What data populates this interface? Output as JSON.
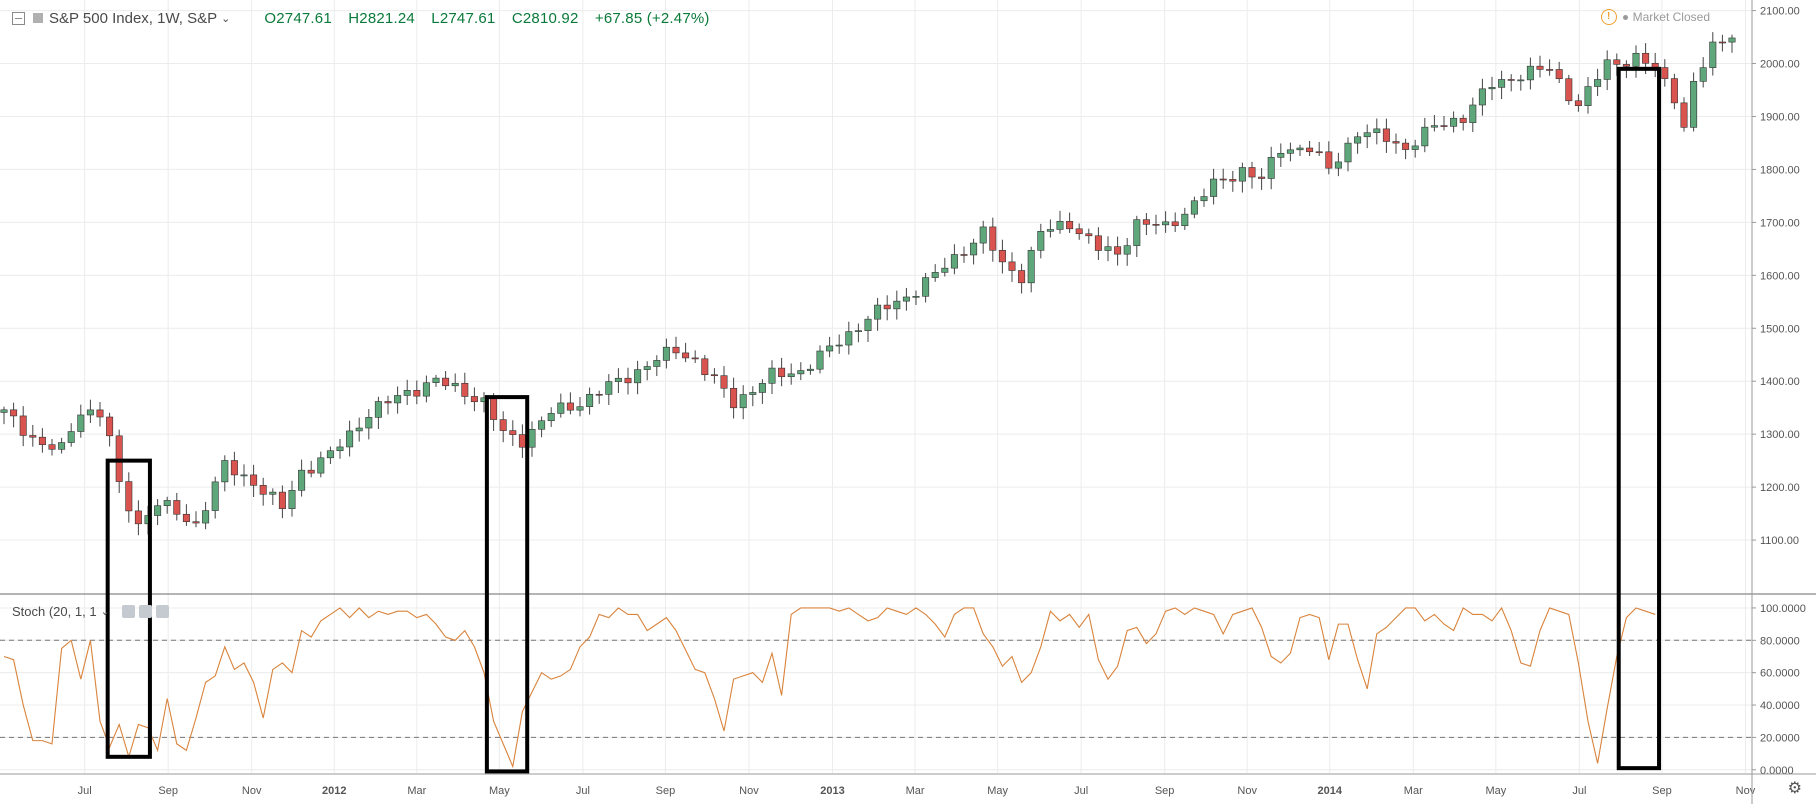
{
  "header": {
    "symbol": "S&P 500 Index, 1W, S&P",
    "open": "O2747.61",
    "high": "H2821.24",
    "low": "L2747.61",
    "close": "C2810.92",
    "change": "+67.85 (+2.47%)"
  },
  "status": {
    "market": "Market Closed"
  },
  "indicator": {
    "label": "Stoch (20, 1, 1"
  },
  "colors": {
    "up": "#5ea77a",
    "down": "#d9534f",
    "stoch_line": "#d9833b",
    "grid": "#ececec",
    "box": "#000000"
  },
  "chart_data": [
    {
      "type": "candlestick",
      "title": "S&P 500 Index, 1W, S&P",
      "ylim": [
        1000,
        2120
      ],
      "ytick_labels": [
        "1100.00",
        "1200.00",
        "1300.00",
        "1400.00",
        "1500.00",
        "1600.00",
        "1700.00",
        "1800.00",
        "1900.00",
        "2000.00",
        "2100.00"
      ],
      "xtick_labels": [
        "Jul",
        "Sep",
        "Nov",
        "2012",
        "Mar",
        "May",
        "Jul",
        "Sep",
        "Nov",
        "2013",
        "Mar",
        "May",
        "Jul",
        "Sep",
        "Nov",
        "2014",
        "Mar",
        "May",
        "Jul",
        "Sep",
        "Nov"
      ],
      "xtick_weeks": [
        8.4,
        17.1,
        25.8,
        34.4,
        43,
        51.6,
        60.3,
        68.9,
        77.6,
        86.3,
        94.9,
        103.5,
        112.2,
        120.9,
        129.5,
        138.1,
        146.8,
        155.4,
        164.1,
        172.7,
        181.4
      ],
      "close_keypoints": [
        [
          0,
          1340
        ],
        [
          4,
          1280
        ],
        [
          6,
          1270
        ],
        [
          8,
          1345
        ],
        [
          10,
          1340
        ],
        [
          11,
          1290
        ],
        [
          12,
          1200
        ],
        [
          14,
          1130
        ],
        [
          16,
          1170
        ],
        [
          18,
          1150
        ],
        [
          20,
          1130
        ],
        [
          23,
          1240
        ],
        [
          26,
          1210
        ],
        [
          29,
          1160
        ],
        [
          31,
          1230
        ],
        [
          34,
          1260
        ],
        [
          38,
          1340
        ],
        [
          42,
          1380
        ],
        [
          45,
          1400
        ],
        [
          48,
          1380
        ],
        [
          50,
          1360
        ],
        [
          52,
          1300
        ],
        [
          54,
          1290
        ],
        [
          57,
          1340
        ],
        [
          60,
          1360
        ],
        [
          64,
          1400
        ],
        [
          68,
          1440
        ],
        [
          70,
          1460
        ],
        [
          72,
          1440
        ],
        [
          76,
          1360
        ],
        [
          80,
          1410
        ],
        [
          83,
          1420
        ],
        [
          86,
          1460
        ],
        [
          90,
          1520
        ],
        [
          94,
          1560
        ],
        [
          97,
          1600
        ],
        [
          100,
          1650
        ],
        [
          102,
          1680
        ],
        [
          104,
          1620
        ],
        [
          106,
          1600
        ],
        [
          108,
          1680
        ],
        [
          111,
          1700
        ],
        [
          114,
          1650
        ],
        [
          116,
          1640
        ],
        [
          118,
          1700
        ],
        [
          121,
          1690
        ],
        [
          123,
          1720
        ],
        [
          126,
          1770
        ],
        [
          129,
          1800
        ],
        [
          131,
          1780
        ],
        [
          133,
          1840
        ],
        [
          136,
          1840
        ],
        [
          138,
          1800
        ],
        [
          141,
          1870
        ],
        [
          144,
          1860
        ],
        [
          146,
          1840
        ],
        [
          149,
          1880
        ],
        [
          152,
          1900
        ],
        [
          155,
          1960
        ],
        [
          158,
          1980
        ],
        [
          161,
          1990
        ],
        [
          164,
          1920
        ],
        [
          167,
          2000
        ],
        [
          170,
          2010
        ],
        [
          172,
          1990
        ],
        [
          174,
          1940
        ],
        [
          175,
          1880
        ],
        [
          176,
          1960
        ],
        [
          178,
          2030
        ],
        [
          180,
          2060
        ]
      ],
      "annotations": [
        {
          "shape": "rectangle",
          "week_start": 10.8,
          "week_end": 15.2,
          "price_top": 1250,
          "indicator_bottom": 8
        },
        {
          "shape": "rectangle",
          "week_start": 50.3,
          "week_end": 54.5,
          "price_top": 1370,
          "indicator_bottom": -1
        },
        {
          "shape": "rectangle",
          "week_start": 168.2,
          "week_end": 172.4,
          "price_top": 1990,
          "indicator_bottom": 1
        }
      ]
    },
    {
      "type": "line",
      "title": "Stoch (20, 1, 1",
      "ylim": [
        -2,
        108
      ],
      "ytick_labels": [
        "0.0000",
        "20.0000",
        "40.0000",
        "60.0000",
        "80.0000",
        "100.0000"
      ],
      "levels": [
        20,
        80
      ],
      "series": [
        {
          "values": [
            70,
            68,
            40,
            18,
            18,
            16,
            75,
            80,
            56,
            80,
            30,
            14,
            28,
            8,
            28,
            26,
            12,
            44,
            16,
            12,
            32,
            54,
            58,
            76,
            62,
            66,
            54,
            32,
            62,
            66,
            60,
            86,
            82,
            92,
            96,
            100,
            94,
            100,
            94,
            98,
            96,
            98,
            98,
            94,
            96,
            90,
            82,
            80,
            86,
            76,
            60,
            30,
            16,
            2,
            36,
            48,
            60,
            56,
            58,
            62,
            76,
            82,
            96,
            94,
            100,
            96,
            96,
            86,
            90,
            94,
            86,
            74,
            62,
            60,
            44,
            24,
            56,
            58,
            60,
            54,
            72,
            46,
            96,
            100,
            100,
            100,
            100,
            98,
            100,
            96,
            92,
            94,
            100,
            98,
            96,
            100,
            96,
            90,
            82,
            96,
            100,
            100,
            84,
            76,
            64,
            70,
            54,
            60,
            76,
            98,
            92,
            96,
            88,
            96,
            68,
            56,
            64,
            86,
            88,
            78,
            84,
            98,
            100,
            96,
            100,
            98,
            96,
            84,
            96,
            98,
            100,
            88,
            70,
            66,
            72,
            94,
            96,
            94,
            68,
            90,
            90,
            68,
            50,
            84,
            88,
            94,
            100,
            100,
            92,
            96,
            90,
            86,
            100,
            96,
            96,
            92,
            100,
            86,
            66,
            64,
            86,
            100,
            98,
            96,
            66,
            30,
            4,
            38,
            70,
            94,
            100,
            98,
            96
          ]
        }
      ]
    }
  ]
}
